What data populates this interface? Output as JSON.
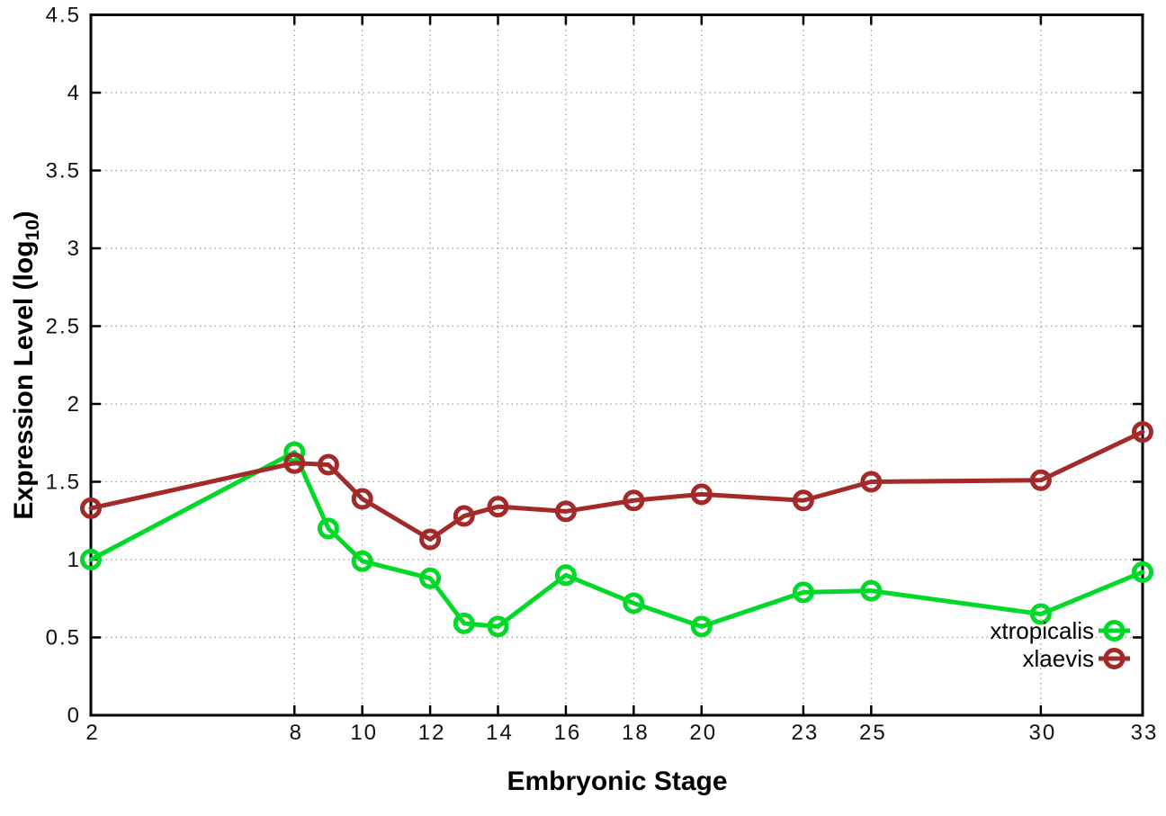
{
  "chart_data": {
    "type": "line",
    "title": "",
    "xlabel": "Embryonic Stage",
    "ylabel": {
      "prefix": "Expression Level (log",
      "subscript": "10",
      "suffix": ")"
    },
    "x": [
      2,
      8,
      9,
      10,
      12,
      13,
      14,
      16,
      18,
      20,
      23,
      25,
      30,
      33
    ],
    "series": [
      {
        "name": "xtropicalis",
        "color": "#00d928",
        "marker": "open-circle",
        "values": [
          1.0,
          1.69,
          1.2,
          0.99,
          0.88,
          0.59,
          0.57,
          0.9,
          0.72,
          0.57,
          0.79,
          0.8,
          0.65,
          0.92
        ]
      },
      {
        "name": "xlaevis",
        "color": "#a32a28",
        "marker": "open-circle",
        "values": [
          1.33,
          1.62,
          1.61,
          1.39,
          1.13,
          1.28,
          1.34,
          1.31,
          1.38,
          1.42,
          1.38,
          1.5,
          1.51,
          1.82
        ]
      }
    ],
    "xticks": {
      "values": [
        2,
        8,
        10,
        12,
        14,
        16,
        18,
        20,
        23,
        25,
        30,
        33
      ],
      "labels": [
        "2",
        "8",
        "10",
        "12",
        "14",
        "16",
        "18",
        "20",
        "23",
        "25",
        "30",
        "33"
      ]
    },
    "yticks": {
      "values": [
        0,
        0.5,
        1,
        1.5,
        2,
        2.5,
        3,
        3.5,
        4,
        4.5
      ],
      "labels": [
        "0",
        "0.5",
        "1",
        "1.5",
        "2",
        "2.5",
        "3",
        "3.5",
        "4",
        "4.5"
      ]
    },
    "xlim": [
      2,
      33
    ],
    "ylim": [
      0,
      4.5
    ],
    "grid": true,
    "legend": {
      "position": "bottom-right",
      "entries": [
        "xtropicalis",
        "xlaevis"
      ]
    },
    "colors": {
      "background": "#ffffff",
      "axis": "#000000",
      "grid": "#9b9b9b",
      "text": "#111111"
    }
  }
}
